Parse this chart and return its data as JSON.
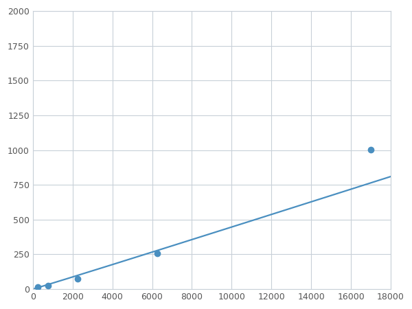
{
  "x_points": [
    250,
    750,
    2250,
    6250,
    17000
  ],
  "y_points": [
    15,
    25,
    75,
    255,
    1005
  ],
  "line_color": "#4a8fc0",
  "marker_color": "#4a8fc0",
  "marker_size": 6,
  "line_width": 1.6,
  "xlim": [
    0,
    18000
  ],
  "ylim": [
    0,
    2000
  ],
  "x_ticks": [
    0,
    2000,
    4000,
    6000,
    8000,
    10000,
    12000,
    14000,
    16000,
    18000
  ],
  "y_ticks": [
    0,
    250,
    500,
    750,
    1000,
    1250,
    1500,
    1750,
    2000
  ],
  "background_color": "#ffffff",
  "grid_color": "#c8d0d8",
  "spine_color": "#c8d0d8"
}
